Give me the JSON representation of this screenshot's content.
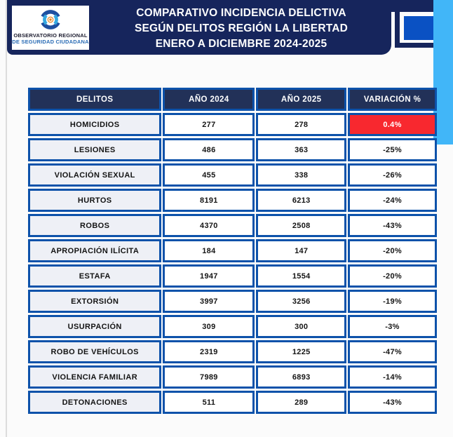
{
  "header": {
    "logo_line1": "OBSERVATORIO REGIONAL",
    "logo_line2": "DE SEGURIDAD CIUDADANA",
    "title_line1": "COMPARATIVO INCIDENCIA DELICTIVA",
    "title_line2": "SEGÚN DELITOS REGIÓN LA LIBERTAD",
    "title_line3": "ENERO A DICIEMBRE 2024-2025"
  },
  "table": {
    "columns": [
      "DELITOS",
      "AÑO 2024",
      "AÑO 2025",
      "VARIACIÓN %"
    ],
    "rows": [
      {
        "delito": "HOMICIDIOS",
        "a2024": "277",
        "a2025": "278",
        "variacion": "0.4%",
        "highlight": true
      },
      {
        "delito": "LESIONES",
        "a2024": "486",
        "a2025": "363",
        "variacion": "-25%",
        "highlight": false
      },
      {
        "delito": "VIOLACIÓN SEXUAL",
        "a2024": "455",
        "a2025": "338",
        "variacion": "-26%",
        "highlight": false
      },
      {
        "delito": "HURTOS",
        "a2024": "8191",
        "a2025": "6213",
        "variacion": "-24%",
        "highlight": false
      },
      {
        "delito": "ROBOS",
        "a2024": "4370",
        "a2025": "2508",
        "variacion": "-43%",
        "highlight": false
      },
      {
        "delito": "APROPIACIÓN ILÍCITA",
        "a2024": "184",
        "a2025": "147",
        "variacion": "-20%",
        "highlight": false
      },
      {
        "delito": "ESTAFA",
        "a2024": "1947",
        "a2025": "1554",
        "variacion": "-20%",
        "highlight": false
      },
      {
        "delito": "EXTORSIÓN",
        "a2024": "3997",
        "a2025": "3256",
        "variacion": "-19%",
        "highlight": false
      },
      {
        "delito": "USURPACIÓN",
        "a2024": "309",
        "a2025": "300",
        "variacion": "-3%",
        "highlight": false
      },
      {
        "delito": "ROBO DE VEHÍCULOS",
        "a2024": "2319",
        "a2025": "1225",
        "variacion": "-47%",
        "highlight": false
      },
      {
        "delito": "VIOLENCIA FAMILIAR",
        "a2024": "7989",
        "a2025": "6893",
        "variacion": "-14%",
        "highlight": false
      },
      {
        "delito": "DETONACIONES",
        "a2024": "511",
        "a2025": "289",
        "variacion": "-43%",
        "highlight": false
      }
    ]
  },
  "colors": {
    "navy": "#16255c",
    "header_navy": "#223158",
    "table_border": "#0d52aa",
    "red": "#f8282f",
    "skyblue": "#41b6f8",
    "square_blue": "#0a51c3",
    "row_label_bg": "#eef0f6",
    "page_bg": "#fbfbfb"
  },
  "chart_data": {
    "type": "table",
    "title": "COMPARATIVO INCIDENCIA DELICTIVA SEGÚN DELITOS REGIÓN LA LIBERTAD ENERO A DICIEMBRE 2024-2025",
    "columns": [
      "DELITOS",
      "AÑO 2024",
      "AÑO 2025",
      "VARIACIÓN %"
    ],
    "categories": [
      "HOMICIDIOS",
      "LESIONES",
      "VIOLACIÓN SEXUAL",
      "HURTOS",
      "ROBOS",
      "APROPIACIÓN ILÍCITA",
      "ESTAFA",
      "EXTORSIÓN",
      "USURPACIÓN",
      "ROBO DE VEHÍCULOS",
      "VIOLENCIA FAMILIAR",
      "DETONACIONES"
    ],
    "series": [
      {
        "name": "AÑO 2024",
        "values": [
          277,
          486,
          455,
          8191,
          4370,
          184,
          1947,
          3997,
          309,
          2319,
          7989,
          511
        ]
      },
      {
        "name": "AÑO 2025",
        "values": [
          278,
          363,
          338,
          6213,
          2508,
          147,
          1554,
          3256,
          300,
          1225,
          6893,
          289
        ]
      }
    ],
    "variation_pct": [
      "0.4%",
      "-25%",
      "-26%",
      "-24%",
      "-43%",
      "-20%",
      "-20%",
      "-19%",
      "-3%",
      "-47%",
      "-14%",
      "-43%"
    ],
    "highlighted_cell": {
      "row": "HOMICIDIOS",
      "column": "VARIACIÓN %",
      "color": "#f8282f"
    }
  }
}
